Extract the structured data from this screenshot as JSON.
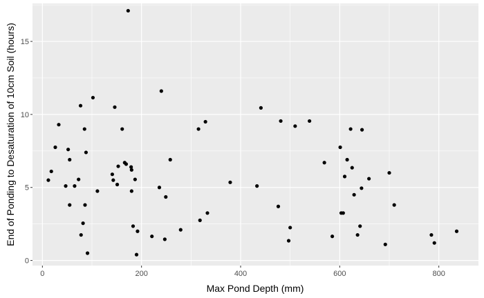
{
  "chart_data": {
    "type": "scatter",
    "title": "",
    "xlabel": "Max Pond Depth (mm)",
    "ylabel": "End of Ponding to Desaturation of 10cm Soil (hours)",
    "xlim": [
      -20,
      880
    ],
    "ylim": [
      -0.35,
      17.6
    ],
    "x_ticks": [
      0,
      200,
      400,
      600,
      800
    ],
    "y_ticks": [
      0,
      5,
      10,
      15
    ],
    "x_tick_labels": [
      "0",
      "200",
      "400",
      "600",
      "800"
    ],
    "y_tick_labels": [
      "0",
      "5",
      "10",
      "15"
    ],
    "grid": true,
    "theme": "ggplot2-grey",
    "panel_color": "#ebebeb",
    "grid_color": "#ffffff",
    "point_color": "#000000",
    "points": [
      [
        12,
        5.5
      ],
      [
        18,
        6.1
      ],
      [
        26,
        7.75
      ],
      [
        33,
        9.3
      ],
      [
        47,
        5.1
      ],
      [
        52,
        7.6
      ],
      [
        55,
        6.9
      ],
      [
        55,
        3.8
      ],
      [
        65,
        5.1
      ],
      [
        73,
        5.55
      ],
      [
        77,
        10.6
      ],
      [
        78,
        1.75
      ],
      [
        82,
        2.55
      ],
      [
        85,
        9.0
      ],
      [
        86,
        3.8
      ],
      [
        88,
        7.4
      ],
      [
        91,
        0.5
      ],
      [
        102,
        11.15
      ],
      [
        111,
        4.75
      ],
      [
        141,
        5.9
      ],
      [
        143,
        5.5
      ],
      [
        146,
        10.5
      ],
      [
        151,
        5.2
      ],
      [
        153,
        6.45
      ],
      [
        161,
        9.0
      ],
      [
        166,
        6.7
      ],
      [
        169,
        6.6
      ],
      [
        173,
        17.1
      ],
      [
        179,
        6.4
      ],
      [
        180,
        6.2
      ],
      [
        180,
        4.75
      ],
      [
        183,
        2.35
      ],
      [
        187,
        5.55
      ],
      [
        190,
        0.4
      ],
      [
        192,
        2.0
      ],
      [
        221,
        1.65
      ],
      [
        236,
        5.0
      ],
      [
        240,
        11.6
      ],
      [
        247,
        1.45
      ],
      [
        249,
        4.35
      ],
      [
        258,
        6.9
      ],
      [
        279,
        2.1
      ],
      [
        315,
        9.0
      ],
      [
        318,
        2.75
      ],
      [
        329,
        9.5
      ],
      [
        333,
        3.25
      ],
      [
        379,
        5.35
      ],
      [
        433,
        5.1
      ],
      [
        441,
        10.45
      ],
      [
        476,
        3.7
      ],
      [
        481,
        9.55
      ],
      [
        497,
        1.35
      ],
      [
        500,
        2.25
      ],
      [
        510,
        9.2
      ],
      [
        539,
        9.55
      ],
      [
        569,
        6.7
      ],
      [
        585,
        1.65
      ],
      [
        601,
        7.75
      ],
      [
        603,
        3.25
      ],
      [
        607,
        3.25
      ],
      [
        610,
        5.75
      ],
      [
        615,
        6.9
      ],
      [
        622,
        9.0
      ],
      [
        625,
        6.35
      ],
      [
        629,
        4.5
      ],
      [
        636,
        1.75
      ],
      [
        641,
        2.35
      ],
      [
        644,
        4.95
      ],
      [
        645,
        8.95
      ],
      [
        659,
        5.6
      ],
      [
        692,
        1.1
      ],
      [
        700,
        6.0
      ],
      [
        710,
        3.8
      ],
      [
        785,
        1.75
      ],
      [
        791,
        1.2
      ],
      [
        836,
        2.0
      ]
    ]
  }
}
